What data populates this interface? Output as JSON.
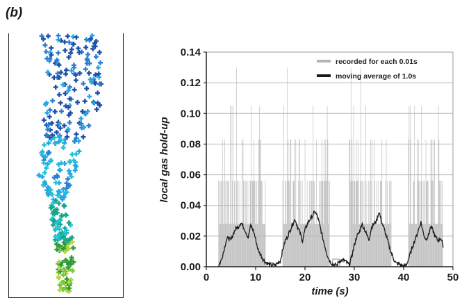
{
  "panel_label": "(b)",
  "colors": {
    "raw": "#b4b4b4",
    "average": "#1a1a1a",
    "grid": "#b8b8b8",
    "bubble_palette": [
      "#1f4fa8",
      "#2a7fd0",
      "#24a7e0",
      "#1ec2d8",
      "#1aa38a",
      "#2a9a3c",
      "#7cc43a",
      "#b8d53a"
    ]
  },
  "bubble_column": {
    "description_icon": "bubble-scatter"
  },
  "chart_data": {
    "type": "line",
    "xlabel": "time (s)",
    "ylabel": "local gas hold-up",
    "xlim": [
      0,
      50
    ],
    "ylim": [
      0,
      0.14
    ],
    "xticks": [
      0,
      10,
      20,
      30,
      40,
      50
    ],
    "yticks": [
      0.0,
      0.02,
      0.04,
      0.06,
      0.08,
      0.1,
      0.12,
      0.14
    ],
    "xtick_labels": [
      "0",
      "10",
      "20",
      "30",
      "40",
      "50"
    ],
    "ytick_labels": [
      "0.00",
      "0.02",
      "0.04",
      "0.06",
      "0.08",
      "0.10",
      "0.12",
      "0.14"
    ],
    "grid": "horizontal",
    "legend_position": "top-right",
    "series": [
      {
        "name": "recorded for each 0.01s",
        "style": "raw",
        "burst_intervals": [
          [
            2.5,
            12.0
          ],
          [
            15.5,
            25.0
          ],
          [
            29.0,
            37.5
          ],
          [
            41.0,
            48.0
          ]
        ],
        "levels": [
          0.028,
          0.056,
          0.083,
          0.105,
          0.13
        ],
        "x": [
          2.5,
          27.0
        ],
        "y": [
          0.0,
          0.005
        ]
      },
      {
        "name": "moving average of 1.0s",
        "style": "average",
        "x": [
          2.5,
          3.0,
          3.5,
          4.0,
          4.5,
          5.0,
          5.5,
          6.0,
          6.5,
          7.0,
          7.5,
          8.0,
          8.5,
          9.0,
          9.5,
          10.0,
          10.5,
          11.0,
          11.5,
          12.0,
          12.5,
          13.0,
          14.0,
          15.0,
          15.5,
          16.0,
          16.5,
          17.0,
          17.5,
          18.0,
          18.5,
          19.0,
          19.5,
          20.0,
          20.5,
          21.0,
          21.5,
          22.0,
          22.5,
          23.0,
          23.5,
          24.0,
          24.5,
          25.0,
          25.5,
          26.0,
          26.5,
          27.0,
          28.0,
          29.0,
          29.5,
          30.0,
          30.5,
          31.0,
          31.5,
          32.0,
          32.5,
          33.0,
          33.5,
          34.0,
          34.5,
          35.0,
          35.5,
          36.0,
          36.5,
          37.0,
          37.5,
          38.0,
          38.5,
          39.0,
          39.5,
          40.0,
          40.5,
          41.0,
          41.5,
          42.0,
          42.5,
          43.0,
          43.5,
          44.0,
          44.5,
          45.0,
          45.5,
          46.0,
          46.5,
          47.0,
          47.5,
          48.0
        ],
        "y": [
          0.001,
          0.004,
          0.01,
          0.017,
          0.019,
          0.017,
          0.022,
          0.025,
          0.026,
          0.029,
          0.026,
          0.023,
          0.019,
          0.027,
          0.024,
          0.018,
          0.011,
          0.008,
          0.005,
          0.003,
          0.002,
          0.001,
          0.001,
          0.004,
          0.011,
          0.017,
          0.02,
          0.024,
          0.028,
          0.031,
          0.026,
          0.022,
          0.017,
          0.024,
          0.028,
          0.031,
          0.033,
          0.036,
          0.033,
          0.027,
          0.02,
          0.014,
          0.008,
          0.004,
          0.002,
          0.001,
          0.001,
          0.004,
          0.004,
          0.001,
          0.007,
          0.014,
          0.02,
          0.022,
          0.028,
          0.025,
          0.021,
          0.018,
          0.026,
          0.028,
          0.03,
          0.036,
          0.03,
          0.025,
          0.02,
          0.014,
          0.009,
          0.005,
          0.002,
          0.002,
          0.001,
          0.0,
          0.001,
          0.005,
          0.01,
          0.015,
          0.019,
          0.024,
          0.029,
          0.022,
          0.018,
          0.02,
          0.026,
          0.023,
          0.019,
          0.017,
          0.019,
          0.014
        ]
      }
    ]
  }
}
